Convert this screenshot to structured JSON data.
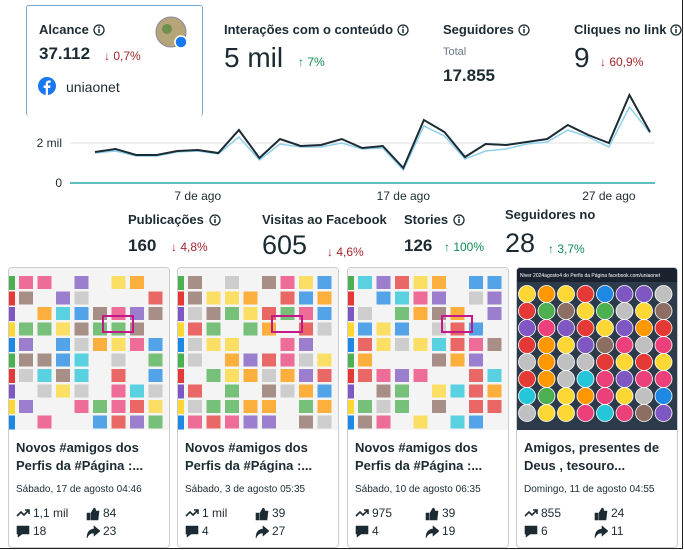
{
  "metrics_top": [
    {
      "label": "Alcance",
      "value": "37.112",
      "change": "↓ 0,7%",
      "page": "uniaonet"
    },
    {
      "label": "Interações com o conteúdo",
      "value": "5 mil",
      "change": "↑ 7%"
    },
    {
      "label": "Seguidores",
      "sublabel": "Total",
      "value": "17.855"
    },
    {
      "label": "Cliques no link",
      "value": "9",
      "change": "↓ 60,9%"
    }
  ],
  "chart_data": {
    "type": "line",
    "categories": [
      null,
      null,
      null,
      null,
      null,
      "7 de ago",
      null,
      null,
      null,
      null,
      null,
      null,
      null,
      null,
      null,
      "17 de ago",
      null,
      null,
      null,
      null,
      null,
      null,
      null,
      null,
      null,
      "27 de ago",
      null,
      null
    ],
    "series": [
      {
        "color": "#1c2b33",
        "values": [
          1550,
          1700,
          1400,
          1400,
          1600,
          1650,
          1500,
          2650,
          1250,
          2200,
          1850,
          1900,
          2200,
          1750,
          1850,
          750,
          3150,
          2550,
          1300,
          1950,
          1900,
          2050,
          2200,
          2900,
          2400,
          2000,
          4400,
          2550
        ]
      },
      {
        "color": "#8fd0ec",
        "values": [
          1500,
          1600,
          1350,
          1350,
          1550,
          1600,
          1450,
          2300,
          1150,
          1950,
          1800,
          1800,
          2000,
          1700,
          1750,
          650,
          2850,
          2350,
          1200,
          1600,
          1700,
          1950,
          2050,
          2650,
          2300,
          1800,
          3800,
          2500
        ]
      }
    ],
    "ylim": [
      0,
      4500
    ],
    "yticks": [
      0,
      {
        "value": 2000,
        "label": "2 mil"
      }
    ],
    "grid": true
  },
  "metrics_mid": [
    {
      "label": "Publicações",
      "value": "160",
      "change": "↓ 4,8%",
      "info": true
    },
    {
      "label": "Visitas ao Facebook",
      "value": "605",
      "change": "↓ 4,6%"
    },
    {
      "label": "Stories",
      "value": "126",
      "change": "↑ 100%",
      "info": true
    },
    {
      "label": "Seguidores no",
      "value": "28",
      "change": "↑ 3,7%"
    }
  ],
  "posts": [
    {
      "title": [
        "Novos #amigos dos",
        "Perfis da #Página :..."
      ],
      "date": "Sábado, 17 de agosto 04:46",
      "reach": "1,1 mil",
      "reactions": "84",
      "comments": "18",
      "shares": "23"
    },
    {
      "title": [
        "Novos #amigos dos",
        "Perfis da #Página :..."
      ],
      "date": "Sábado, 3 de agosto 05:35",
      "reach": "1 mil",
      "reactions": "39",
      "comments": "4",
      "shares": "27"
    },
    {
      "title": [
        "Novos #amigos dos",
        "Perfis da #Página :..."
      ],
      "date": "Sábado, 10 de agosto 06:35",
      "reach": "975",
      "reactions": "39",
      "comments": "4",
      "shares": "19"
    },
    {
      "title": [
        "Amigos, presentes de",
        "Deus , tesouro..."
      ],
      "date": "Domingo, 11 de agosto 04:55",
      "reach": "855",
      "reactions": "24",
      "comments": "6",
      "shares": "11",
      "image_caption": "Niver 2024agosto4 do Perfis da Página facebook.com/uniaonet"
    }
  ]
}
